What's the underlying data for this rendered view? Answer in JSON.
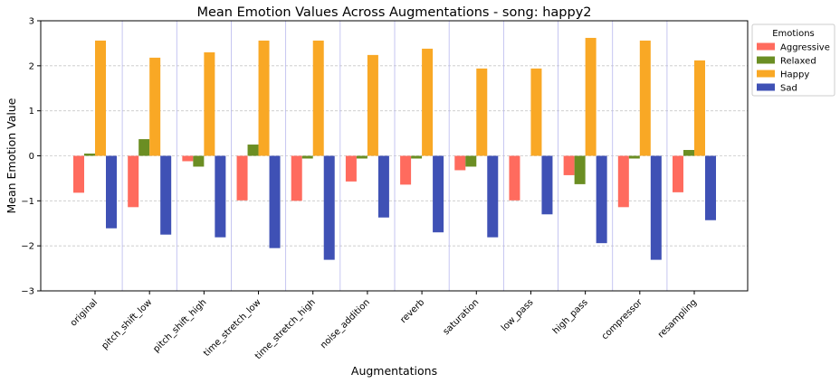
{
  "chart_data": {
    "type": "bar",
    "title": "Mean Emotion Values Across Augmentations - song: happy2",
    "xlabel": "Augmentations",
    "ylabel": "Mean Emotion Value",
    "ylim": [
      -3,
      3
    ],
    "yticks": [
      -3,
      -2,
      -1,
      0,
      1,
      2,
      3
    ],
    "grid": "horizontal dashed",
    "legend": {
      "title": "Emotions",
      "placement": "outside-top-right"
    },
    "categories": [
      "original",
      "pitch_shift_low",
      "pitch_shift_high",
      "time_stretch_low",
      "time_stretch_high",
      "noise_addition",
      "reverb",
      "saturation",
      "low_pass",
      "high_pass",
      "compressor",
      "resampling"
    ],
    "series": [
      {
        "name": "Aggressive",
        "color": "#ff6b5e",
        "values": [
          -0.82,
          -1.14,
          -0.12,
          -0.99,
          -1.0,
          -0.57,
          -0.64,
          -0.32,
          -0.99,
          -0.43,
          -1.14,
          -0.81
        ]
      },
      {
        "name": "Relaxed",
        "color": "#6b8e23",
        "values": [
          0.05,
          0.37,
          -0.24,
          0.25,
          -0.06,
          -0.06,
          -0.06,
          -0.24,
          0.0,
          -0.63,
          -0.06,
          0.13
        ]
      },
      {
        "name": "Happy",
        "color": "#f9a825",
        "values": [
          2.56,
          2.18,
          2.3,
          2.56,
          2.56,
          2.24,
          2.38,
          1.94,
          1.94,
          2.62,
          2.56,
          2.12
        ]
      },
      {
        "name": "Sad",
        "color": "#3f51b5",
        "values": [
          -1.61,
          -1.75,
          -1.81,
          -2.05,
          -2.31,
          -1.37,
          -1.7,
          -1.81,
          -1.3,
          -1.94,
          -2.31,
          -1.43
        ]
      }
    ]
  }
}
